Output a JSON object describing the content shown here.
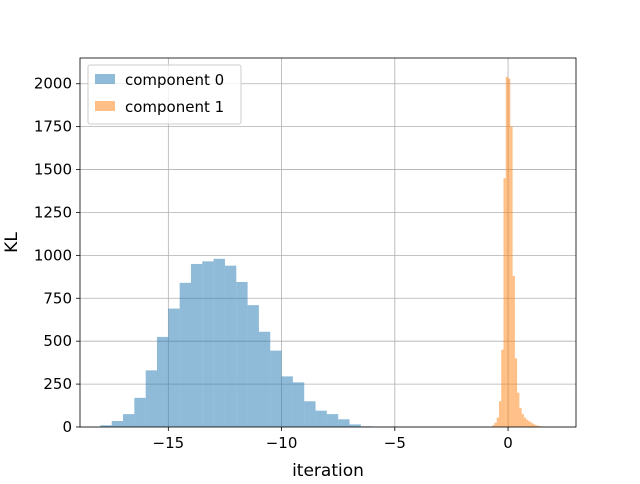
{
  "chart_data": {
    "type": "histogram",
    "xlabel": "iteration",
    "ylabel": "KL",
    "xlim": [
      -18.9,
      3.0
    ],
    "ylim": [
      0,
      2150
    ],
    "xticks": [
      -15,
      -10,
      -5,
      0
    ],
    "xtick_labels": [
      "−15",
      "−10",
      "−5",
      "0"
    ],
    "yticks": [
      0,
      250,
      500,
      750,
      1000,
      1250,
      1500,
      1750,
      2000
    ],
    "ytick_labels": [
      "0",
      "250",
      "500",
      "750",
      "1000",
      "1250",
      "1500",
      "1750",
      "2000"
    ],
    "grid": true,
    "legend_position": "upper-left",
    "series": [
      {
        "name": "component 0",
        "color": "#1f77b4",
        "alpha": 0.5,
        "bin_start": -18.0,
        "bin_width": 0.5,
        "counts": [
          10,
          35,
          75,
          170,
          330,
          525,
          690,
          840,
          950,
          965,
          980,
          940,
          845,
          710,
          555,
          445,
          295,
          260,
          150,
          95,
          75,
          45,
          15,
          4,
          2,
          1
        ]
      },
      {
        "name": "component 1",
        "color": "#ff7f0e",
        "alpha": 0.5,
        "bin_start": -0.7,
        "bin_width": 0.1,
        "counts": [
          10,
          25,
          55,
          150,
          450,
          1450,
          2040,
          2030,
          1750,
          880,
          400,
          200,
          110,
          75,
          55,
          42,
          33,
          24,
          16,
          10,
          6,
          4,
          3
        ]
      }
    ]
  }
}
